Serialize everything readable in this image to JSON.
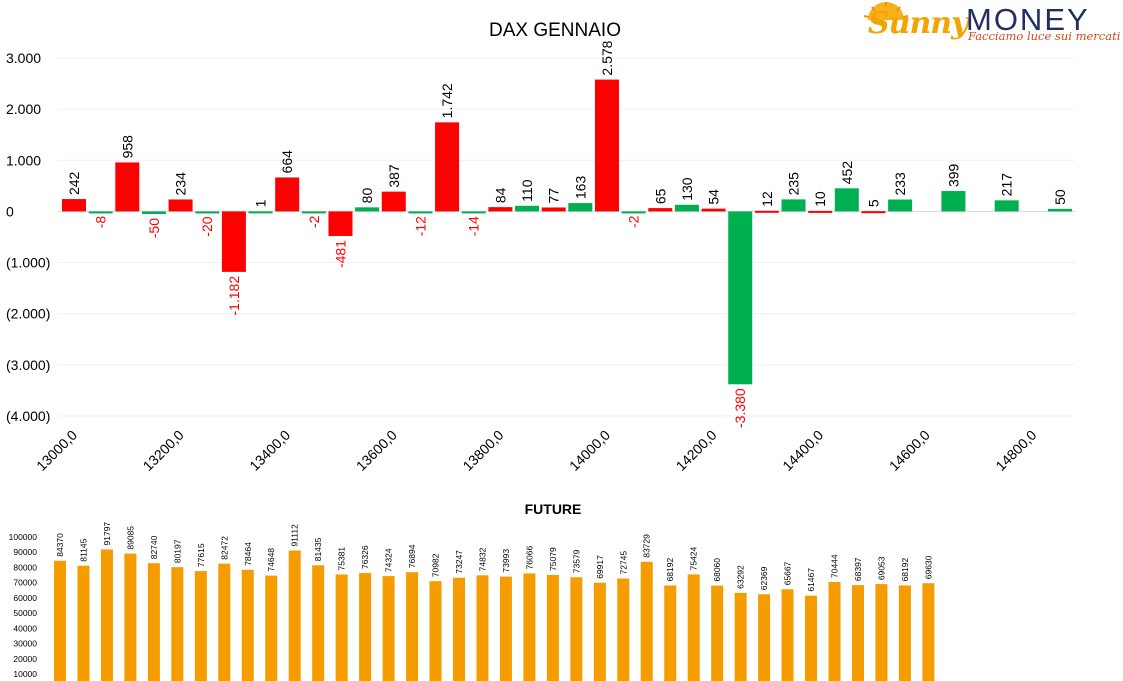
{
  "logo": {
    "brand_1": "Sunny",
    "brand_2": "MONEY",
    "tagline": "Facciamo luce sui mercati"
  },
  "chart_data": [
    {
      "type": "bar",
      "title": "DAX GENNAIO",
      "ylim": [
        -4000,
        3000
      ],
      "y_ticks": [
        "3.000",
        "2.000",
        "1.000",
        "0",
        "(1.000)",
        "(2.000)",
        "(3.000)",
        "(4.000)"
      ],
      "x_tick_labels": [
        "13000,0",
        "13200,0",
        "13400,0",
        "13600,0",
        "13800,0",
        "14000,0",
        "14200,0",
        "14400,0",
        "14600,0",
        "14800,0"
      ],
      "colors": {
        "red": "#ff0000",
        "green": "#00b050"
      },
      "legend": "none",
      "grid": "horizontal",
      "bars": [
        {
          "x": 13000,
          "value": 242,
          "color": "red",
          "label": "242"
        },
        {
          "x": 13050,
          "value": -8,
          "color": "green",
          "label": "-8"
        },
        {
          "x": 13100,
          "value": 958,
          "color": "red",
          "label": "958"
        },
        {
          "x": 13150,
          "value": -50,
          "color": "green",
          "label": "-50"
        },
        {
          "x": 13200,
          "value": 234,
          "color": "red",
          "label": "234"
        },
        {
          "x": 13250,
          "value": -20,
          "color": "green",
          "label": "-20"
        },
        {
          "x": 13300,
          "value": -1182,
          "color": "red",
          "label": "-1.182"
        },
        {
          "x": 13350,
          "value": 1,
          "color": "green",
          "label": "1"
        },
        {
          "x": 13400,
          "value": 664,
          "color": "red",
          "label": "664"
        },
        {
          "x": 13450,
          "value": -2,
          "color": "green",
          "label": "-2"
        },
        {
          "x": 13500,
          "value": -481,
          "color": "red",
          "label": "-481"
        },
        {
          "x": 13550,
          "value": 80,
          "color": "green",
          "label": "80"
        },
        {
          "x": 13600,
          "value": 387,
          "color": "red",
          "label": "387"
        },
        {
          "x": 13650,
          "value": -12,
          "color": "green",
          "label": "-12"
        },
        {
          "x": 13700,
          "value": 1742,
          "color": "red",
          "label": "1.742"
        },
        {
          "x": 13750,
          "value": -14,
          "color": "green",
          "label": "-14"
        },
        {
          "x": 13800,
          "value": 84,
          "color": "red",
          "label": "84"
        },
        {
          "x": 13850,
          "value": 110,
          "color": "green",
          "label": "110"
        },
        {
          "x": 13900,
          "value": 77,
          "color": "red",
          "label": "77"
        },
        {
          "x": 13950,
          "value": 163,
          "color": "green",
          "label": "163"
        },
        {
          "x": 14000,
          "value": 2578,
          "color": "red",
          "label": "2.578"
        },
        {
          "x": 14050,
          "value": -2,
          "color": "green",
          "label": "-2"
        },
        {
          "x": 14100,
          "value": 65,
          "color": "red",
          "label": "65"
        },
        {
          "x": 14150,
          "value": 130,
          "color": "green",
          "label": "130"
        },
        {
          "x": 14200,
          "value": 54,
          "color": "red",
          "label": "54"
        },
        {
          "x": 14250,
          "value": -3380,
          "color": "green",
          "label": "-3.380"
        },
        {
          "x": 14300,
          "value": 12,
          "color": "red",
          "label": "12"
        },
        {
          "x": 14350,
          "value": 235,
          "color": "green",
          "label": "235"
        },
        {
          "x": 14400,
          "value": 10,
          "color": "red",
          "label": "10"
        },
        {
          "x": 14450,
          "value": 452,
          "color": "green",
          "label": "452"
        },
        {
          "x": 14500,
          "value": 5,
          "color": "red",
          "label": "5"
        },
        {
          "x": 14550,
          "value": 233,
          "color": "green",
          "label": "233"
        },
        {
          "x": 14650,
          "value": 399,
          "color": "green",
          "label": "399"
        },
        {
          "x": 14750,
          "value": 217,
          "color": "green",
          "label": "217"
        },
        {
          "x": 14850,
          "value": 50,
          "color": "green",
          "label": "50"
        }
      ]
    },
    {
      "type": "bar",
      "title": "FUTURE",
      "ylim": [
        0,
        100000
      ],
      "y_ticks": [
        "100000",
        "90000",
        "80000",
        "70000",
        "60000",
        "50000",
        "40000",
        "30000",
        "20000",
        "10000"
      ],
      "color": "#f59c00",
      "legend": "none",
      "values": [
        84370,
        81145,
        91797,
        89085,
        82740,
        80197,
        77615,
        82472,
        78464,
        74648,
        91112,
        81435,
        75381,
        76326,
        74324,
        76894,
        70982,
        73247,
        74832,
        73993,
        76066,
        75079,
        73579,
        69917,
        72745,
        83729,
        68192,
        75424,
        68060,
        63292,
        62369,
        65667,
        61467,
        70444,
        68397,
        69053,
        68192,
        69630
      ]
    }
  ]
}
